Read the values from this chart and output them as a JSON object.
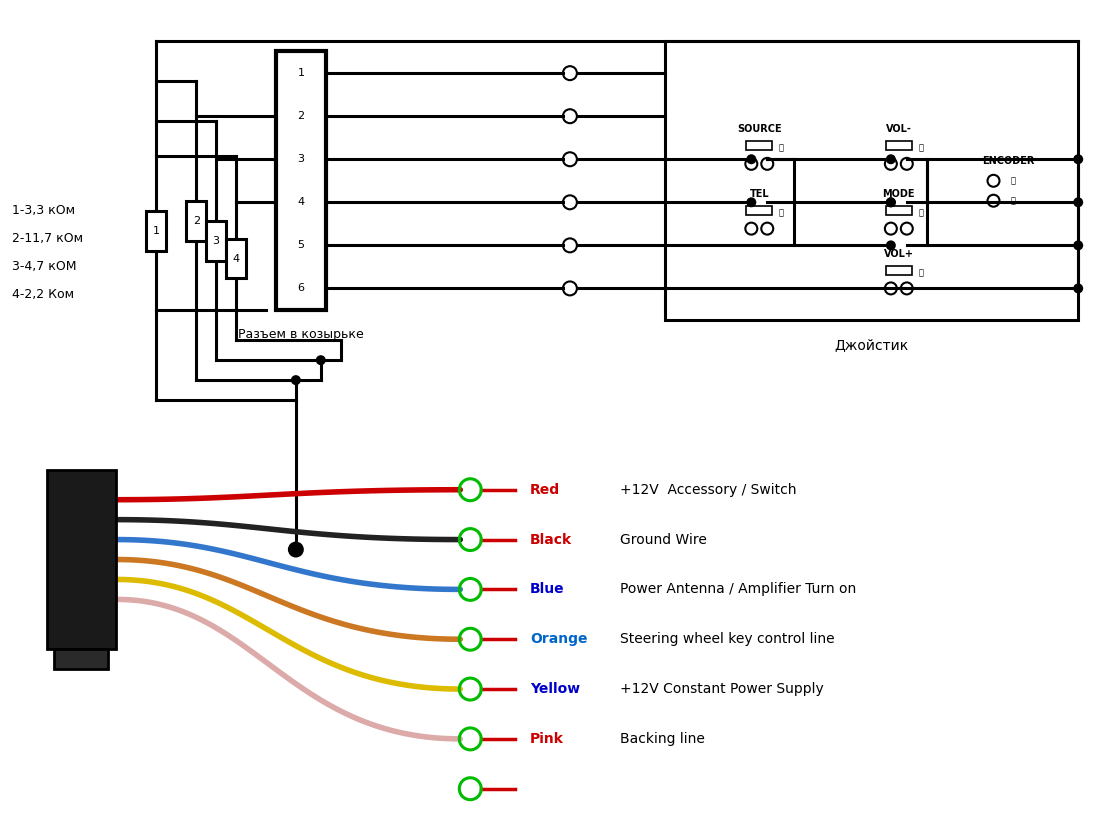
{
  "bg_color": "#ffffff",
  "resistor_labels": [
    "1-3,3 кОм",
    "2-11,7 кОм",
    "3-4,7 кОМ",
    "4-2,2 Ком"
  ],
  "connector_label": "Разъем в козырьке",
  "joystick_label": "Джойстик",
  "wire_labels": [
    "Red",
    "Black",
    "Blue",
    "Orange",
    "Yellow",
    "Pink"
  ],
  "wire_label_colors": [
    "#cc0000",
    "#cc0000",
    "#0000cc",
    "#0066cc",
    "#0000cc",
    "#cc0000"
  ],
  "wire_hex_colors": [
    "#cc0000",
    "#222222",
    "#3377cc",
    "#cc7722",
    "#ddbb00",
    "#ddaaaa"
  ],
  "wire_descriptions": [
    "+12V  Accessory / Switch",
    "Ground Wire",
    "Power Antenna / Amplifier Turn on",
    "Steering wheel key control line",
    "+12V Constant Power Supply",
    "Backing line"
  ],
  "pin_labels": [
    "1",
    "2",
    "3",
    "4",
    "5",
    "6"
  ]
}
